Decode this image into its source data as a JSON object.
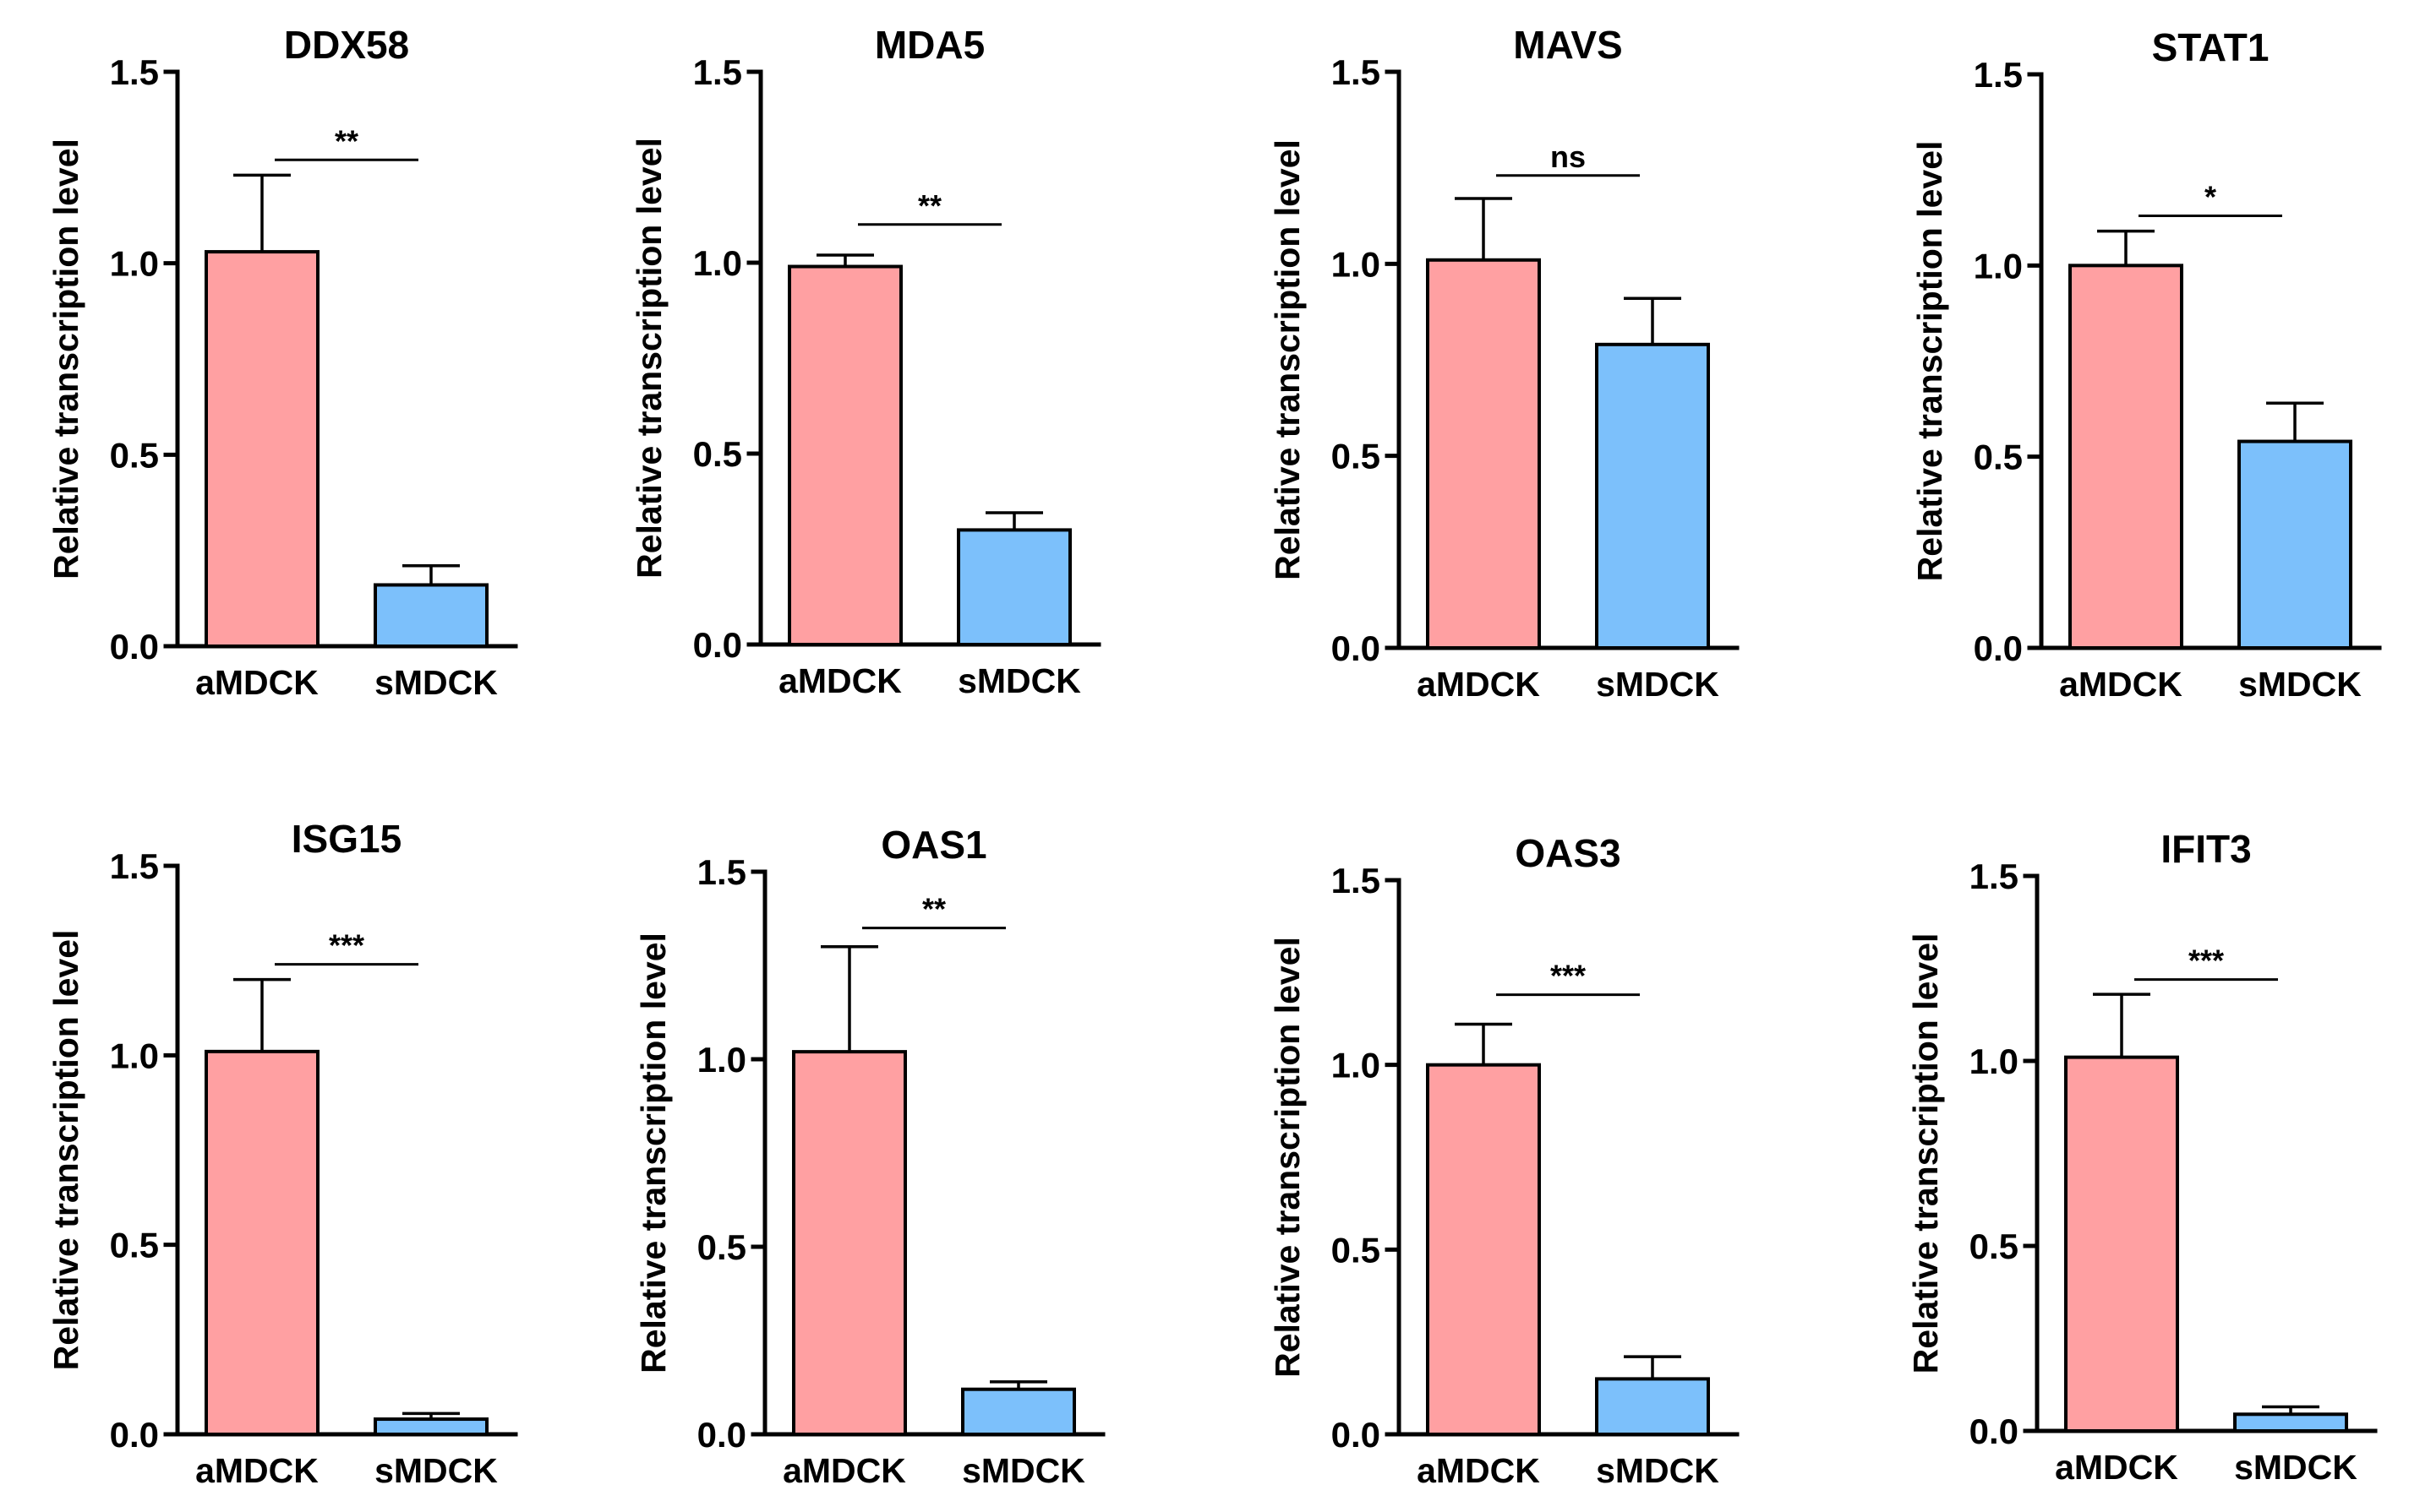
{
  "chart_data": [
    {
      "type": "bar",
      "title": "DDX58",
      "categories": [
        "aMDCK",
        "sMDCK"
      ],
      "values": [
        1.03,
        0.16
      ],
      "errors": [
        0.2,
        0.05
      ],
      "colors": [
        "#FFA0A2",
        "#7CC0FB"
      ],
      "ylabel": "Relative transcription level",
      "ylim": [
        0,
        1.5
      ],
      "yticks": [
        "0.0",
        "0.5",
        "1.0",
        "1.5"
      ],
      "significance": "**",
      "sig_y": 1.27
    },
    {
      "type": "bar",
      "title": "MDA5",
      "categories": [
        "aMDCK",
        "sMDCK"
      ],
      "values": [
        0.99,
        0.3
      ],
      "errors": [
        0.03,
        0.045
      ],
      "colors": [
        "#FFA0A2",
        "#7CC0FB"
      ],
      "ylabel": "Relative transcription level",
      "ylim": [
        0,
        1.5
      ],
      "yticks": [
        "0.0",
        "0.5",
        "1.0",
        "1.5"
      ],
      "significance": "**",
      "sig_y": 1.1
    },
    {
      "type": "bar",
      "title": "MAVS",
      "categories": [
        "aMDCK",
        "sMDCK"
      ],
      "values": [
        1.01,
        0.79
      ],
      "errors": [
        0.16,
        0.12
      ],
      "colors": [
        "#FFA0A2",
        "#7CC0FB"
      ],
      "ylabel": "Relative transcription level",
      "ylim": [
        0,
        1.5
      ],
      "yticks": [
        "0.0",
        "0.5",
        "1.0",
        "1.5"
      ],
      "significance": "ns",
      "sig_y": 1.23
    },
    {
      "type": "bar",
      "title": "STAT1",
      "categories": [
        "aMDCK",
        "sMDCK"
      ],
      "values": [
        1.0,
        0.54
      ],
      "errors": [
        0.09,
        0.1
      ],
      "colors": [
        "#FFA0A2",
        "#7CC0FB"
      ],
      "ylabel": "Relative transcription level",
      "ylim": [
        0,
        1.5
      ],
      "yticks": [
        "0.0",
        "0.5",
        "1.0",
        "1.5"
      ],
      "significance": "*",
      "sig_y": 1.13
    },
    {
      "type": "bar",
      "title": "ISG15",
      "categories": [
        "aMDCK",
        "sMDCK"
      ],
      "values": [
        1.01,
        0.04
      ],
      "errors": [
        0.19,
        0.015
      ],
      "colors": [
        "#FFA0A2",
        "#7CC0FB"
      ],
      "ylabel": "Relative transcription level",
      "ylim": [
        0,
        1.5
      ],
      "yticks": [
        "0.0",
        "0.5",
        "1.0",
        "1.5"
      ],
      "significance": "***",
      "sig_y": 1.24
    },
    {
      "type": "bar",
      "title": "OAS1",
      "categories": [
        "aMDCK",
        "sMDCK"
      ],
      "values": [
        1.02,
        0.12
      ],
      "errors": [
        0.28,
        0.02
      ],
      "colors": [
        "#FFA0A2",
        "#7CC0FB"
      ],
      "ylabel": "Relative transcription level",
      "ylim": [
        0,
        1.5
      ],
      "yticks": [
        "0.0",
        "0.5",
        "1.0",
        "1.5"
      ],
      "significance": "**",
      "sig_y": 1.35
    },
    {
      "type": "bar",
      "title": "OAS3",
      "categories": [
        "aMDCK",
        "sMDCK"
      ],
      "values": [
        1.0,
        0.15
      ],
      "errors": [
        0.11,
        0.06
      ],
      "colors": [
        "#FFA0A2",
        "#7CC0FB"
      ],
      "ylabel": "Relative transcription level",
      "ylim": [
        0,
        1.5
      ],
      "yticks": [
        "0.0",
        "0.5",
        "1.0",
        "1.5"
      ],
      "significance": "***",
      "sig_y": 1.19
    },
    {
      "type": "bar",
      "title": "IFIT3",
      "categories": [
        "aMDCK",
        "sMDCK"
      ],
      "values": [
        1.01,
        0.045
      ],
      "errors": [
        0.17,
        0.02
      ],
      "colors": [
        "#FFA0A2",
        "#7CC0FB"
      ],
      "ylabel": "Relative transcription level",
      "ylim": [
        0,
        1.5
      ],
      "yticks": [
        "0.0",
        "0.5",
        "1.0",
        "1.5"
      ],
      "significance": "***",
      "sig_y": 1.22
    }
  ]
}
